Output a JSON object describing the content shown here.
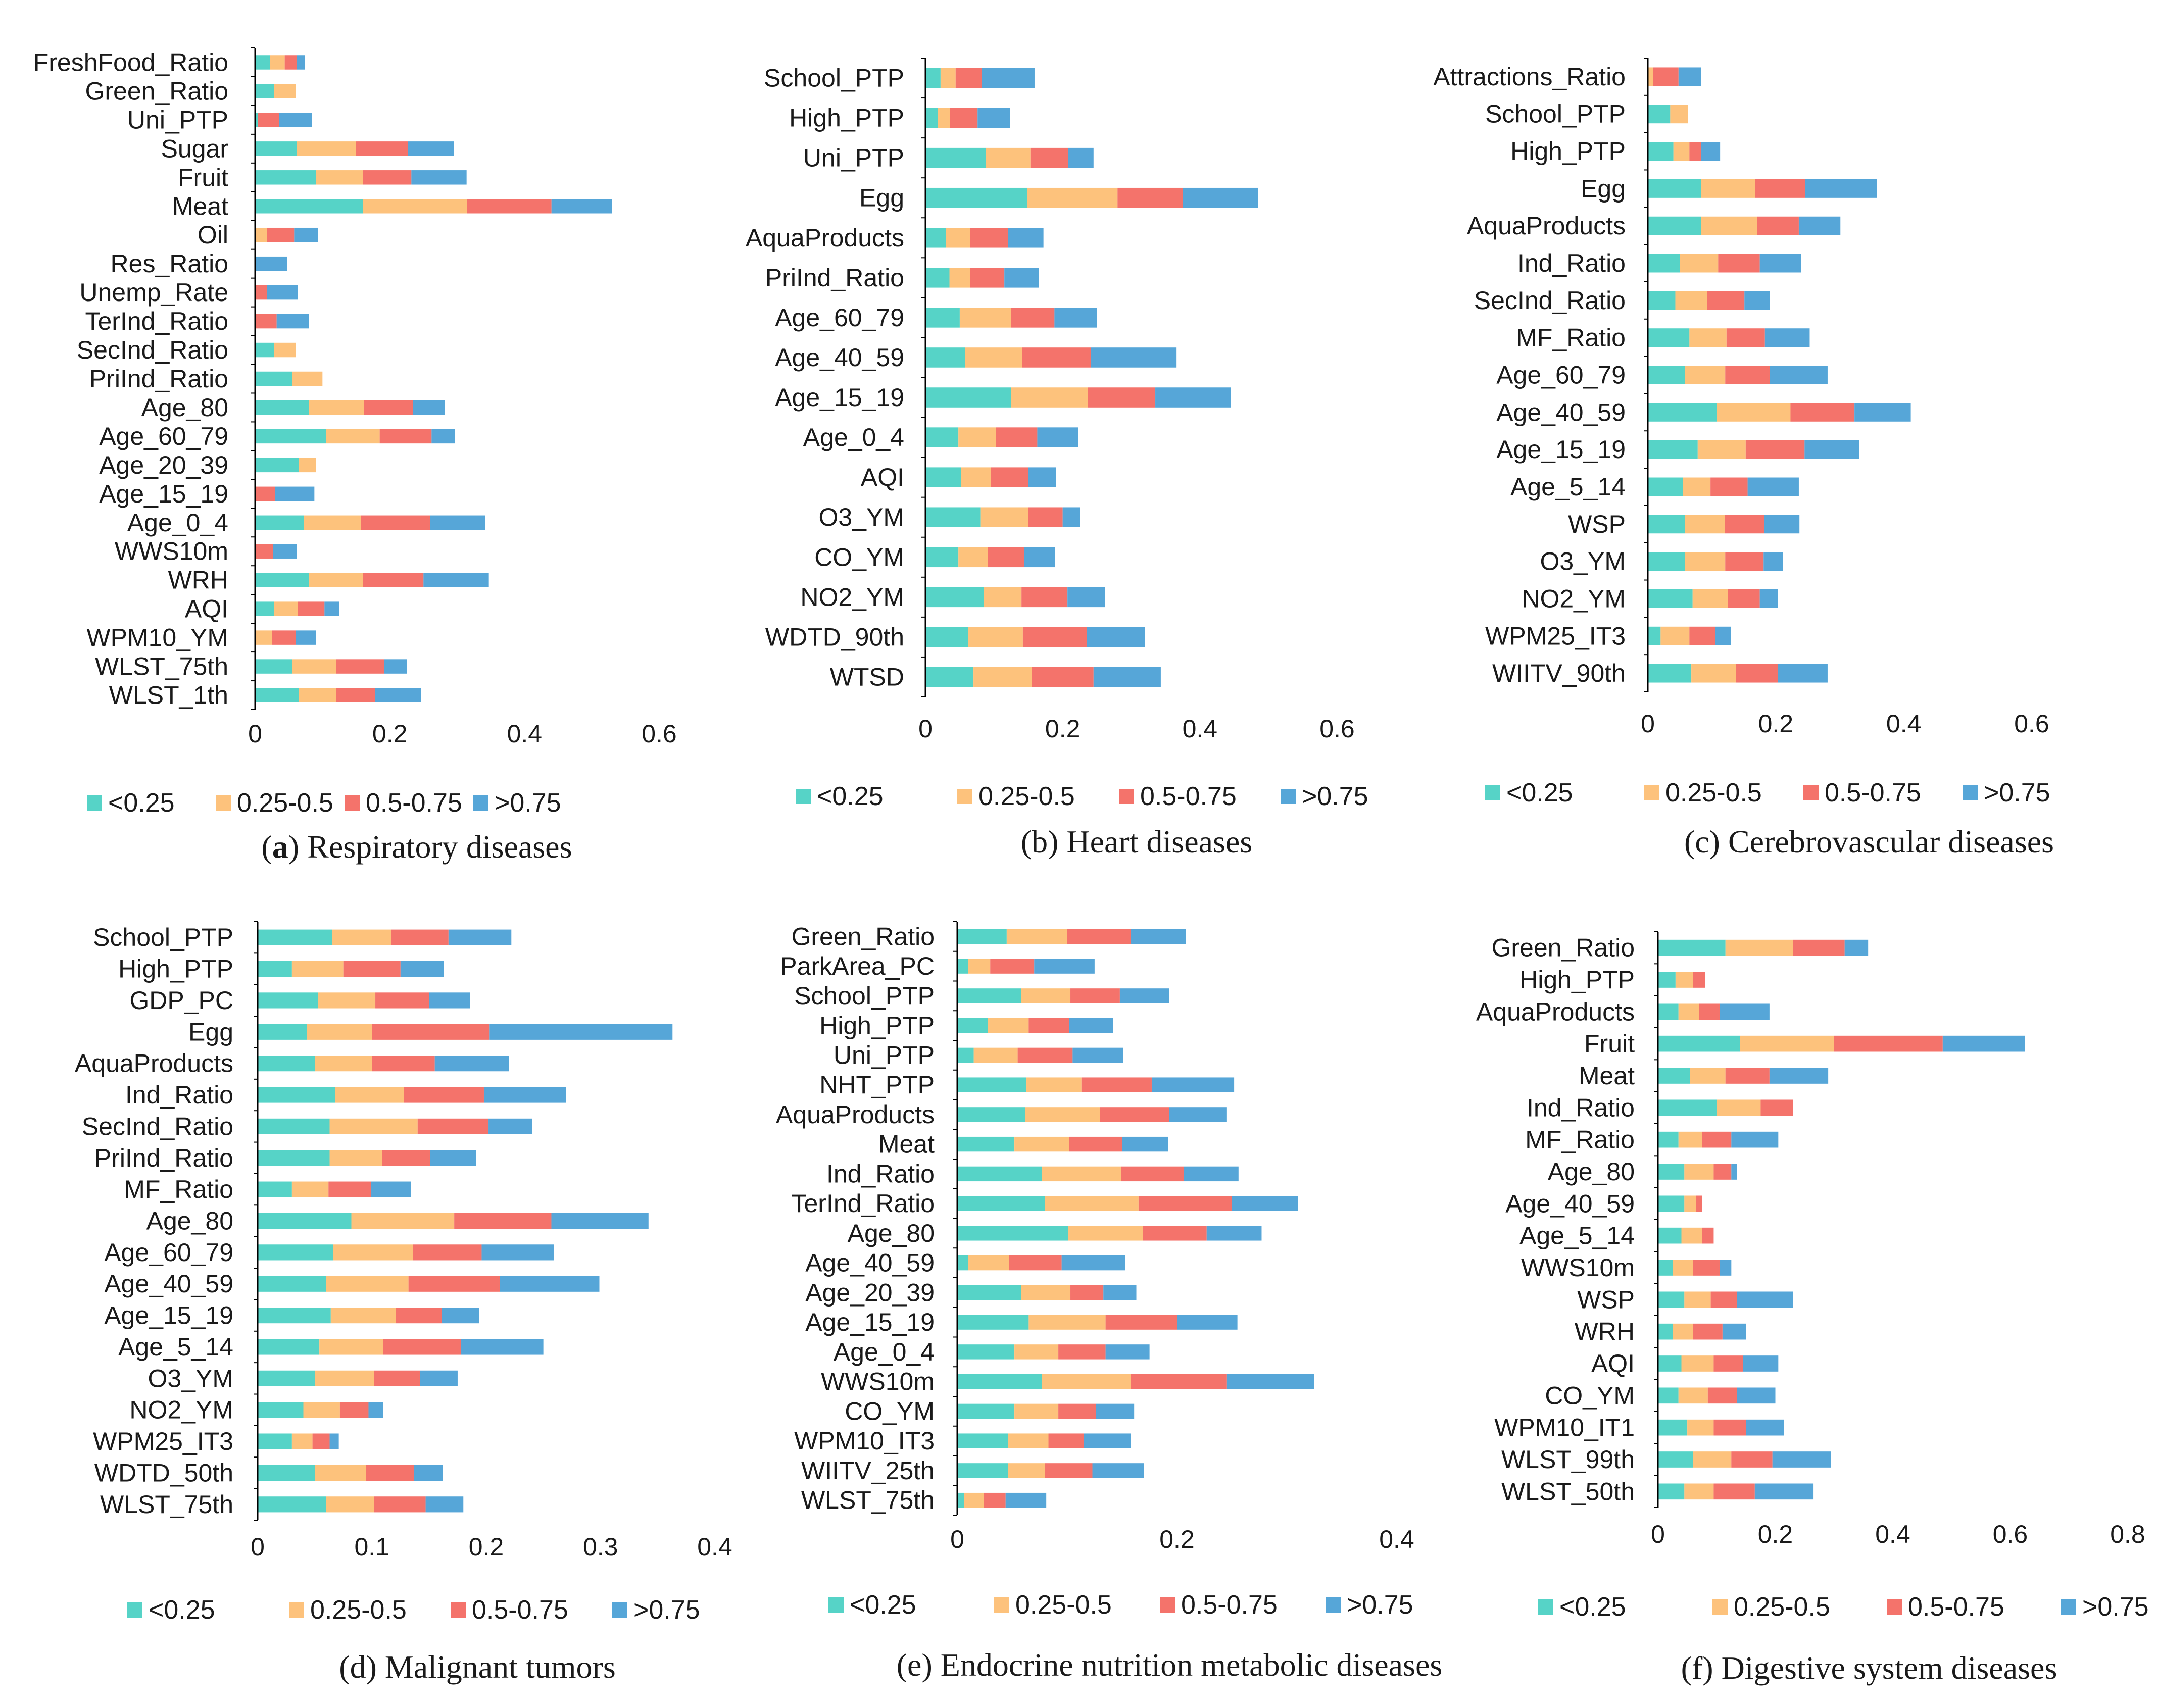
{
  "colors": {
    "lt025": "#56D3C7",
    "q025_05": "#FDC27C",
    "q05_075": "#F4736B",
    "gt075": "#56A6D8",
    "axis": "#000000"
  },
  "legend": {
    "items": [
      {
        "label": "<0.25",
        "color_key": "lt025"
      },
      {
        "label": "0.25-0.5",
        "color_key": "q025_05"
      },
      {
        "label": "0.5-0.75",
        "color_key": "q05_075"
      },
      {
        "label": ">0.75",
        "color_key": "gt075"
      }
    ]
  },
  "chart_data": [
    {
      "id": "a",
      "type": "bar",
      "orientation": "horizontal-stacked",
      "caption_prefix": "(a)",
      "caption_title": "Respiratory diseases",
      "categories": [
        "FreshFood_Ratio",
        "Green_Ratio",
        "Uni_PTP",
        "Sugar",
        "Fruit",
        "Meat",
        "Oil",
        "Res_Ratio",
        "Unemp_Rate",
        "TerInd_Ratio",
        "SecInd_Ratio",
        "PriInd_Ratio",
        "Age_80",
        "Age_60_79",
        "Age_20_39",
        "Age_15_19",
        "Age_0_4",
        "WWS10m",
        "WRH",
        "AQI",
        "WPM10_YM",
        "WLST_75th",
        "WLST_1th"
      ],
      "series": [
        {
          "name": "<0.25",
          "values": [
            0.022,
            0.028,
            0.004,
            0.062,
            0.09,
            0.16,
            0.0,
            0.0,
            0.0,
            0.0,
            0.028,
            0.055,
            0.08,
            0.105,
            0.065,
            0.0,
            0.072,
            0.0,
            0.08,
            0.028,
            0.0,
            0.055,
            0.065
          ]
        },
        {
          "name": "0.25-0.5",
          "values": [
            0.022,
            0.032,
            0.0,
            0.088,
            0.07,
            0.155,
            0.018,
            0.0,
            0.0,
            0.0,
            0.032,
            0.045,
            0.082,
            0.08,
            0.025,
            0.0,
            0.085,
            0.0,
            0.08,
            0.035,
            0.025,
            0.065,
            0.055
          ]
        },
        {
          "name": "0.5-0.75",
          "values": [
            0.018,
            0.0,
            0.032,
            0.077,
            0.072,
            0.125,
            0.04,
            0.0,
            0.018,
            0.032,
            0.0,
            0.0,
            0.072,
            0.077,
            0.0,
            0.03,
            0.103,
            0.027,
            0.09,
            0.04,
            0.035,
            0.072,
            0.058
          ]
        },
        {
          "name": ">0.75",
          "values": [
            0.012,
            0.0,
            0.048,
            0.068,
            0.082,
            0.09,
            0.035,
            0.048,
            0.045,
            0.048,
            0.0,
            0.0,
            0.048,
            0.035,
            0.0,
            0.058,
            0.082,
            0.035,
            0.097,
            0.022,
            0.03,
            0.033,
            0.068
          ]
        }
      ],
      "xlim": [
        0,
        0.6
      ],
      "xticks": [
        "0",
        "0.2",
        "0.4",
        "0.6"
      ]
    },
    {
      "id": "b",
      "type": "bar",
      "orientation": "horizontal-stacked",
      "caption_prefix": "(b)",
      "caption_title": "Heart diseases",
      "categories": [
        "School_PTP",
        "High_PTP",
        "Uni_PTP",
        "Egg",
        "AquaProducts",
        "PriInd_Ratio",
        "Age_60_79",
        "Age_40_59",
        "Age_15_19",
        "Age_0_4",
        "AQI",
        "O3_YM",
        "CO_YM",
        "NO2_YM",
        "WDTD_90th",
        "WTSD"
      ],
      "series": [
        {
          "name": "<0.25",
          "values": [
            0.022,
            0.018,
            0.088,
            0.148,
            0.03,
            0.035,
            0.05,
            0.058,
            0.125,
            0.048,
            0.052,
            0.08,
            0.048,
            0.085,
            0.062,
            0.07
          ]
        },
        {
          "name": "0.25-0.5",
          "values": [
            0.022,
            0.018,
            0.065,
            0.132,
            0.035,
            0.03,
            0.075,
            0.083,
            0.112,
            0.055,
            0.043,
            0.07,
            0.043,
            0.055,
            0.08,
            0.085
          ]
        },
        {
          "name": "0.5-0.75",
          "values": [
            0.038,
            0.04,
            0.055,
            0.095,
            0.055,
            0.05,
            0.063,
            0.1,
            0.098,
            0.06,
            0.055,
            0.05,
            0.053,
            0.067,
            0.093,
            0.09
          ]
        },
        {
          "name": ">0.75",
          "values": [
            0.077,
            0.047,
            0.037,
            0.11,
            0.052,
            0.05,
            0.062,
            0.125,
            0.11,
            0.06,
            0.04,
            0.025,
            0.045,
            0.055,
            0.085,
            0.098
          ]
        }
      ],
      "xlim": [
        0,
        0.6
      ],
      "xticks": [
        "0",
        "0.2",
        "0.4",
        "0.6"
      ]
    },
    {
      "id": "c",
      "type": "bar",
      "orientation": "horizontal-stacked",
      "caption_prefix": "(c)",
      "caption_title": "Cerebrovascular diseases",
      "categories": [
        "Attractions_Ratio",
        "School_PTP",
        "High_PTP",
        "Egg",
        "AquaProducts",
        "Ind_Ratio",
        "SecInd_Ratio",
        "MF_Ratio",
        "Age_60_79",
        "Age_40_59",
        "Age_15_19",
        "Age_5_14",
        "WSP",
        "O3_YM",
        "NO2_YM",
        "WPM25_IT3",
        "WIITV_90th"
      ],
      "series": [
        {
          "name": "<0.25",
          "values": [
            0.0,
            0.035,
            0.04,
            0.083,
            0.083,
            0.05,
            0.043,
            0.065,
            0.058,
            0.108,
            0.078,
            0.055,
            0.058,
            0.058,
            0.07,
            0.02,
            0.068
          ]
        },
        {
          "name": "0.25-0.5",
          "values": [
            0.008,
            0.028,
            0.025,
            0.085,
            0.088,
            0.06,
            0.05,
            0.058,
            0.063,
            0.115,
            0.075,
            0.043,
            0.062,
            0.063,
            0.055,
            0.045,
            0.07
          ]
        },
        {
          "name": "0.5-0.75",
          "values": [
            0.04,
            0.0,
            0.018,
            0.078,
            0.065,
            0.065,
            0.058,
            0.06,
            0.07,
            0.1,
            0.092,
            0.058,
            0.062,
            0.06,
            0.05,
            0.04,
            0.065
          ]
        },
        {
          "name": ">0.75",
          "values": [
            0.035,
            0.0,
            0.03,
            0.112,
            0.065,
            0.065,
            0.04,
            0.07,
            0.09,
            0.088,
            0.085,
            0.08,
            0.055,
            0.03,
            0.028,
            0.025,
            0.078
          ]
        }
      ],
      "xlim": [
        0,
        0.6
      ],
      "xticks": [
        "0",
        "0.2",
        "0.4",
        "0.6"
      ]
    },
    {
      "id": "d",
      "type": "bar",
      "orientation": "horizontal-stacked",
      "caption_prefix": "(d)",
      "caption_title": "Malignant tumors",
      "categories": [
        "School_PTP",
        "High_PTP",
        "GDP_PC",
        "Egg",
        "AquaProducts",
        "Ind_Ratio",
        "SecInd_Ratio",
        "PriInd_Ratio",
        "MF_Ratio",
        "Age_80",
        "Age_60_79",
        "Age_40_59",
        "Age_15_19",
        "Age_5_14",
        "O3_YM",
        "NO2_YM",
        "WPM25_IT3",
        "WDTD_50th",
        "WLST_75th"
      ],
      "series": [
        {
          "name": "<0.25",
          "values": [
            0.065,
            0.03,
            0.053,
            0.043,
            0.05,
            0.068,
            0.063,
            0.063,
            0.03,
            0.082,
            0.066,
            0.06,
            0.064,
            0.054,
            0.05,
            0.04,
            0.03,
            0.05,
            0.06
          ]
        },
        {
          "name": "0.25-0.5",
          "values": [
            0.052,
            0.045,
            0.05,
            0.057,
            0.05,
            0.06,
            0.077,
            0.046,
            0.032,
            0.09,
            0.07,
            0.072,
            0.057,
            0.056,
            0.052,
            0.032,
            0.018,
            0.045,
            0.042
          ]
        },
        {
          "name": "0.5-0.75",
          "values": [
            0.05,
            0.05,
            0.047,
            0.103,
            0.055,
            0.07,
            0.062,
            0.042,
            0.037,
            0.085,
            0.06,
            0.08,
            0.04,
            0.068,
            0.04,
            0.025,
            0.015,
            0.042,
            0.045
          ]
        },
        {
          "name": ">0.75",
          "values": [
            0.055,
            0.038,
            0.036,
            0.16,
            0.065,
            0.072,
            0.038,
            0.04,
            0.035,
            0.085,
            0.063,
            0.087,
            0.033,
            0.072,
            0.033,
            0.013,
            0.008,
            0.025,
            0.033
          ]
        }
      ],
      "xlim": [
        0,
        0.4
      ],
      "xticks": [
        "0",
        "0.1",
        "0.2",
        "0.3",
        "0.4"
      ]
    },
    {
      "id": "e",
      "type": "bar",
      "orientation": "horizontal-stacked",
      "caption_prefix": "(e)",
      "caption_title": "Endocrine nutrition metabolic diseases",
      "categories": [
        "Green_Ratio",
        "ParkArea_PC",
        "School_PTP",
        "High_PTP",
        "Uni_PTP",
        "NHT_PTP",
        "AquaProducts",
        "Meat",
        "Ind_Ratio",
        "TerInd_Ratio",
        "Age_80",
        "Age_40_59",
        "Age_20_39",
        "Age_15_19",
        "Age_0_4",
        "WWS10m",
        "CO_YM",
        "WPM10_IT3",
        "WIITV_25th",
        "WLST_75th"
      ],
      "series": [
        {
          "name": "<0.25",
          "values": [
            0.045,
            0.01,
            0.058,
            0.028,
            0.015,
            0.063,
            0.062,
            0.052,
            0.077,
            0.08,
            0.101,
            0.01,
            0.058,
            0.065,
            0.052,
            0.077,
            0.052,
            0.046,
            0.046,
            0.006
          ]
        },
        {
          "name": "0.25-0.5",
          "values": [
            0.055,
            0.02,
            0.045,
            0.037,
            0.04,
            0.05,
            0.068,
            0.05,
            0.072,
            0.085,
            0.068,
            0.037,
            0.045,
            0.07,
            0.04,
            0.081,
            0.04,
            0.037,
            0.034,
            0.018
          ]
        },
        {
          "name": "0.5-0.75",
          "values": [
            0.058,
            0.04,
            0.045,
            0.037,
            0.05,
            0.064,
            0.063,
            0.048,
            0.057,
            0.085,
            0.058,
            0.048,
            0.03,
            0.065,
            0.043,
            0.087,
            0.034,
            0.032,
            0.043,
            0.02
          ]
        },
        {
          "name": ">0.75",
          "values": [
            0.05,
            0.055,
            0.045,
            0.04,
            0.046,
            0.075,
            0.052,
            0.042,
            0.05,
            0.06,
            0.05,
            0.058,
            0.03,
            0.055,
            0.04,
            0.08,
            0.035,
            0.043,
            0.047,
            0.037
          ]
        }
      ],
      "xlim": [
        0,
        0.4
      ],
      "xticks": [
        "0",
        "0.2",
        "0.4"
      ]
    },
    {
      "id": "f",
      "type": "bar",
      "orientation": "horizontal-stacked",
      "caption_prefix": "(f)",
      "caption_title": "Digestive system diseases",
      "categories": [
        "Green_Ratio",
        "High_PTP",
        "AquaProducts",
        "Fruit",
        "Meat",
        "Ind_Ratio",
        "MF_Ratio",
        "Age_80",
        "Age_40_59",
        "Age_5_14",
        "WWS10m",
        "WSP",
        "WRH",
        "AQI",
        "CO_YM",
        "WPM10_IT1",
        "WLST_99th",
        "WLST_50th"
      ],
      "series": [
        {
          "name": "<0.25",
          "values": [
            0.115,
            0.03,
            0.035,
            0.14,
            0.055,
            0.1,
            0.035,
            0.045,
            0.045,
            0.04,
            0.025,
            0.045,
            0.025,
            0.04,
            0.035,
            0.05,
            0.06,
            0.045
          ]
        },
        {
          "name": "0.25-0.5",
          "values": [
            0.115,
            0.03,
            0.035,
            0.16,
            0.06,
            0.075,
            0.04,
            0.05,
            0.02,
            0.035,
            0.035,
            0.045,
            0.035,
            0.055,
            0.05,
            0.045,
            0.065,
            0.05
          ]
        },
        {
          "name": "0.5-0.75",
          "values": [
            0.088,
            0.02,
            0.035,
            0.185,
            0.075,
            0.055,
            0.05,
            0.03,
            0.01,
            0.02,
            0.045,
            0.045,
            0.05,
            0.05,
            0.05,
            0.055,
            0.07,
            0.07
          ]
        },
        {
          "name": ">0.75",
          "values": [
            0.04,
            0.0,
            0.085,
            0.14,
            0.1,
            0.0,
            0.08,
            0.01,
            0.0,
            0.0,
            0.02,
            0.095,
            0.04,
            0.06,
            0.065,
            0.065,
            0.1,
            0.1
          ]
        }
      ],
      "xlim": [
        0,
        0.8
      ],
      "xticks": [
        "0",
        "0.2",
        "0.4",
        "0.6",
        "0.8"
      ]
    }
  ]
}
